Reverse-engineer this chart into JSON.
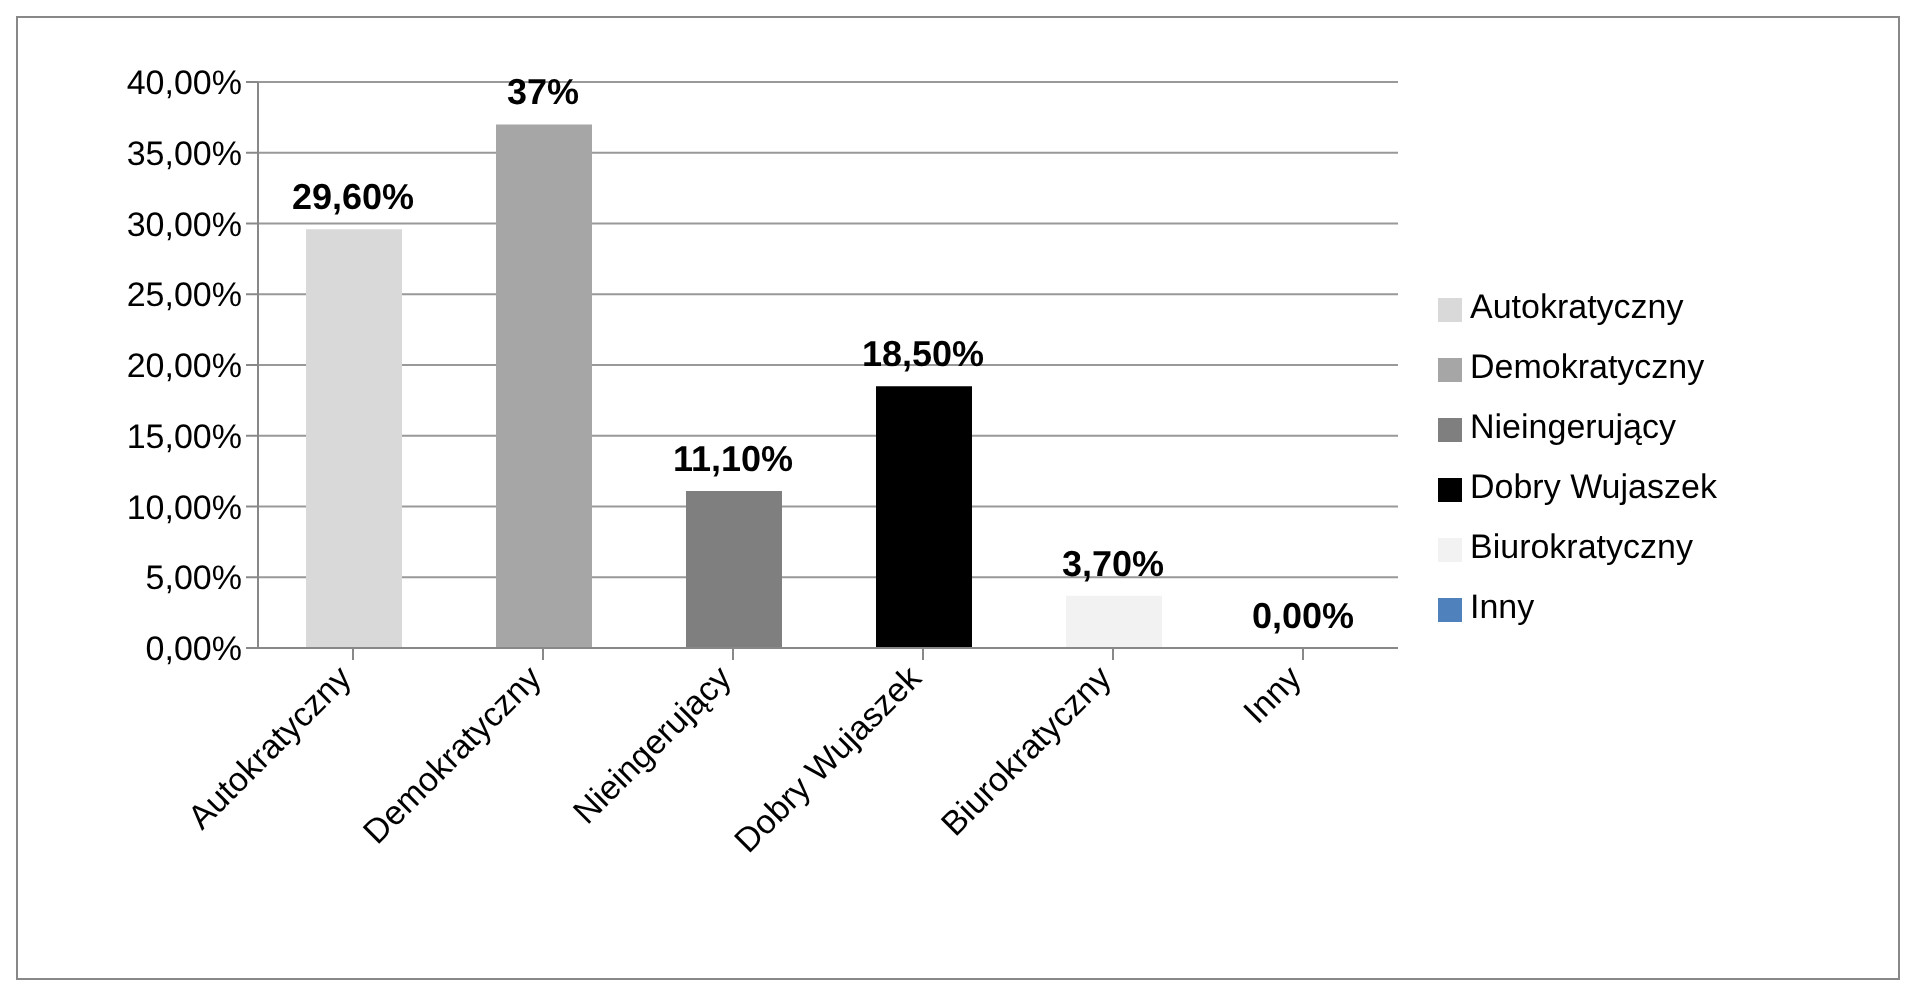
{
  "chart_data": {
    "type": "bar",
    "categories": [
      "Autokratyczny",
      "Demokratyczny",
      "Nieingerujący",
      "Dobry Wujaszek",
      "Biurokratyczny",
      "Inny"
    ],
    "stacked": true,
    "series": [
      {
        "name": "Autokratyczny",
        "color": "#d9d9d9",
        "values": [
          29.6,
          null,
          null,
          null,
          null,
          null
        ],
        "value_labels": [
          "29,60%",
          null,
          null,
          null,
          null,
          null
        ]
      },
      {
        "name": "Demokratyczny",
        "color": "#a6a6a6",
        "values": [
          null,
          37,
          null,
          null,
          null,
          null
        ],
        "value_labels": [
          null,
          "37%",
          null,
          null,
          null,
          null
        ]
      },
      {
        "name": "Nieingerujący",
        "color": "#7f7f7f",
        "values": [
          null,
          null,
          11.1,
          null,
          null,
          null
        ],
        "value_labels": [
          null,
          null,
          "11,10%",
          null,
          null,
          null
        ]
      },
      {
        "name": "Dobry Wujaszek",
        "color": "#000000",
        "values": [
          null,
          null,
          null,
          18.5,
          null,
          null
        ],
        "value_labels": [
          null,
          null,
          null,
          "18,50%",
          null,
          null
        ]
      },
      {
        "name": "Biurokratyczny",
        "color": "#f2f2f2",
        "values": [
          null,
          null,
          null,
          null,
          3.7,
          null
        ],
        "value_labels": [
          null,
          null,
          null,
          null,
          "3,70%",
          null
        ]
      },
      {
        "name": "Inny",
        "color": "#4f81bd",
        "values": [
          null,
          null,
          null,
          null,
          null,
          0
        ],
        "value_labels": [
          null,
          null,
          null,
          null,
          null,
          "0,00%"
        ]
      }
    ],
    "ylim": [
      0,
      40
    ],
    "yticks": [
      {
        "value": 0,
        "label": "0,00%"
      },
      {
        "value": 5,
        "label": "5,00%"
      },
      {
        "value": 10,
        "label": "10,00%"
      },
      {
        "value": 15,
        "label": "15,00%"
      },
      {
        "value": 20,
        "label": "20,00%"
      },
      {
        "value": 25,
        "label": "25,00%"
      },
      {
        "value": 30,
        "label": "30,00%"
      },
      {
        "value": 35,
        "label": "35,00%"
      },
      {
        "value": 40,
        "label": "40,00%"
      }
    ],
    "grid": "y",
    "legend": "right"
  }
}
